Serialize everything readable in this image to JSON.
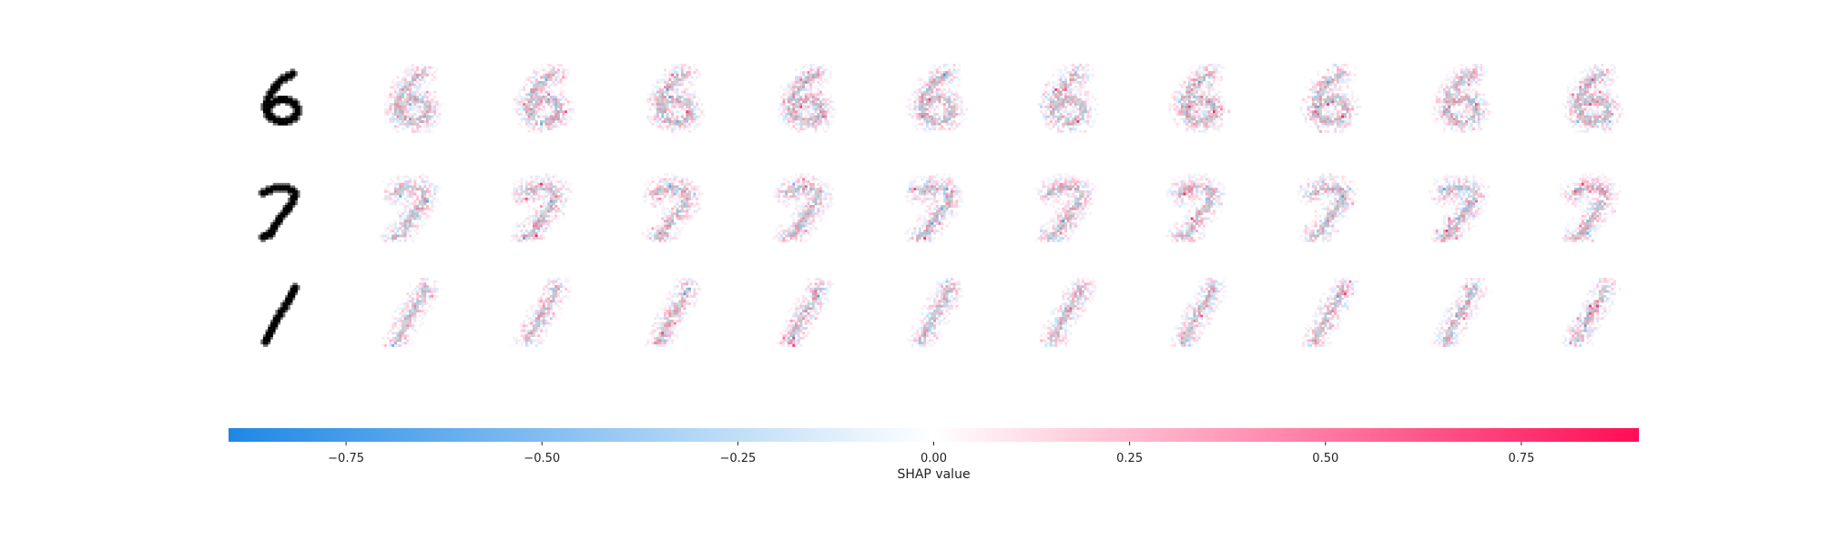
{
  "chart_data": {
    "type": "heatmap",
    "title": "",
    "rows": [
      {
        "digit": "6"
      },
      {
        "digit": "7"
      },
      {
        "digit": "1"
      }
    ],
    "explanation_columns": 10,
    "colorbar": {
      "label": "SHAP value",
      "vmin": -0.9,
      "vmax": 0.9,
      "ticks": [
        -0.75,
        -0.5,
        -0.25,
        0.0,
        0.25,
        0.5,
        0.75
      ],
      "tick_labels": [
        "−0.75",
        "−0.50",
        "−0.25",
        "0.00",
        "0.25",
        "0.50",
        "0.75"
      ],
      "negative_color": "#1E88E5",
      "neutral_color": "#FFFFFF",
      "positive_color": "#FF0D57"
    },
    "digit_color": "#000000"
  }
}
